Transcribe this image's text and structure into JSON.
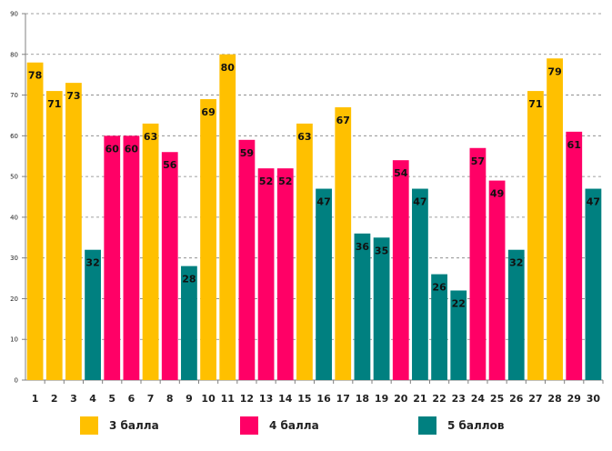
{
  "chart_data": {
    "type": "bar",
    "categories": [
      "1",
      "2",
      "3",
      "4",
      "5",
      "6",
      "7",
      "8",
      "9",
      "10",
      "11",
      "12",
      "13",
      "14",
      "15",
      "16",
      "17",
      "18",
      "19",
      "20",
      "21",
      "22",
      "23",
      "24",
      "25",
      "26",
      "27",
      "28",
      "29",
      "30"
    ],
    "values": [
      78,
      71,
      73,
      32,
      60,
      60,
      63,
      56,
      28,
      69,
      80,
      59,
      52,
      52,
      63,
      47,
      67,
      36,
      35,
      54,
      47,
      26,
      22,
      57,
      49,
      32,
      71,
      79,
      61,
      47
    ],
    "groups": [
      "3 балла",
      "3 балла",
      "3 балла",
      "5 баллов",
      "4 балла",
      "4 балла",
      "3 балла",
      "4 балла",
      "5 баллов",
      "3 балла",
      "3 балла",
      "4 балла",
      "4 балла",
      "4 балла",
      "3 балла",
      "5 баллов",
      "3 балла",
      "5 баллов",
      "5 баллов",
      "4 балла",
      "5 баллов",
      "5 баллов",
      "5 баллов",
      "4 балла",
      "4 балла",
      "5 баллов",
      "3 балла",
      "3 балла",
      "4 балла",
      "5 баллов"
    ],
    "ylim": [
      0,
      90
    ],
    "yticks": [
      0,
      10,
      20,
      30,
      40,
      50,
      60,
      70,
      80,
      90
    ],
    "grid": true,
    "title": "",
    "xlabel": "",
    "ylabel": "",
    "legend": {
      "position": "bottom",
      "entries": [
        {
          "label": "3 балла",
          "color": "#FFC000"
        },
        {
          "label": "4 балла",
          "color": "#FF0066"
        },
        {
          "label": "5 баллов",
          "color": "#008080"
        }
      ]
    }
  }
}
